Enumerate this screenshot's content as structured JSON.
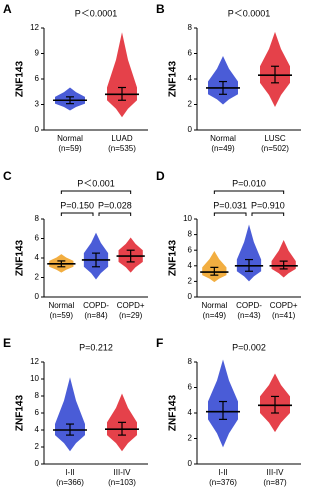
{
  "chart_data": [
    {
      "type": "dot",
      "panel": "A",
      "y_label": "ZNF143",
      "ylim": [
        0,
        12
      ],
      "yticks": [
        0,
        3,
        6,
        9,
        12
      ],
      "annotations": [
        "P＜0.0001"
      ],
      "series": [
        {
          "name": "Normal",
          "n_label": "(n=59)",
          "color": "#2a3fd0",
          "median": 3.5,
          "q1": 3.1,
          "q3": 3.9,
          "min": 2.3,
          "max": 5.0
        },
        {
          "name": "LUAD",
          "n_label": "(n=535)",
          "color": "#e0202a",
          "median": 4.2,
          "q1": 3.5,
          "q3": 5.0,
          "min": 1.5,
          "max": 11.5
        }
      ]
    },
    {
      "type": "dot",
      "panel": "B",
      "y_label": "ZNF143",
      "ylim": [
        0,
        8
      ],
      "yticks": [
        0,
        2,
        4,
        6,
        8
      ],
      "annotations": [
        "P＜0.0001"
      ],
      "series": [
        {
          "name": "Normal",
          "n_label": "(n=49)",
          "color": "#2a3fd0",
          "median": 3.3,
          "q1": 2.8,
          "q3": 3.8,
          "min": 2.0,
          "max": 5.8
        },
        {
          "name": "LUSC",
          "n_label": "(n=502)",
          "color": "#e0202a",
          "median": 4.3,
          "q1": 3.7,
          "q3": 5.0,
          "min": 1.8,
          "max": 7.7
        }
      ]
    },
    {
      "type": "dot",
      "panel": "C",
      "y_label": "ZNF143",
      "ylim": [
        0,
        8
      ],
      "yticks": [
        0,
        2,
        4,
        6,
        8
      ],
      "annotations": [
        "P=0.150",
        "P=0.028",
        "P＜0.001"
      ],
      "series": [
        {
          "name": "Normal",
          "n_label": "(n=59)",
          "color": "#f0a020",
          "median": 3.4,
          "q1": 3.1,
          "q3": 3.7,
          "min": 2.5,
          "max": 4.4
        },
        {
          "name": "COPD-",
          "n_label": "(n=84)",
          "color": "#2a3fd0",
          "median": 3.8,
          "q1": 3.1,
          "q3": 4.5,
          "min": 1.8,
          "max": 6.6
        },
        {
          "name": "COPD+",
          "n_label": "(n=29)",
          "color": "#e0202a",
          "median": 4.2,
          "q1": 3.6,
          "q3": 4.8,
          "min": 2.5,
          "max": 6.1
        }
      ]
    },
    {
      "type": "dot",
      "panel": "D",
      "y_label": "ZNF143",
      "ylim": [
        0,
        10
      ],
      "yticks": [
        0,
        2,
        4,
        6,
        8,
        10
      ],
      "annotations": [
        "P=0.031",
        "P=0.910",
        "P=0.010"
      ],
      "series": [
        {
          "name": "Normal",
          "n_label": "(n=49)",
          "color": "#f0a020",
          "median": 3.2,
          "q1": 2.8,
          "q3": 3.8,
          "min": 1.9,
          "max": 5.9
        },
        {
          "name": "COPD-",
          "n_label": "(n=43)",
          "color": "#2a3fd0",
          "median": 4.0,
          "q1": 3.3,
          "q3": 4.8,
          "min": 2.0,
          "max": 9.3
        },
        {
          "name": "COPD+",
          "n_label": "(n=41)",
          "color": "#e0202a",
          "median": 4.0,
          "q1": 3.6,
          "q3": 4.6,
          "min": 2.5,
          "max": 7.3
        }
      ]
    },
    {
      "type": "dot",
      "panel": "E",
      "y_label": "ZNF143",
      "ylim": [
        0,
        12
      ],
      "yticks": [
        0,
        2,
        4,
        6,
        8,
        10,
        12
      ],
      "annotations": [
        "P=0.212"
      ],
      "series": [
        {
          "name": "I-II",
          "n_label": "(n=366)",
          "color": "#2a3fd0",
          "median": 4.0,
          "q1": 3.4,
          "q3": 4.7,
          "min": 1.5,
          "max": 10.2
        },
        {
          "name": "III-IV",
          "n_label": "(n=103)",
          "color": "#e0202a",
          "median": 4.1,
          "q1": 3.4,
          "q3": 4.9,
          "min": 1.5,
          "max": 8.3
        }
      ]
    },
    {
      "type": "dot",
      "panel": "F",
      "y_label": "ZNF143",
      "ylim": [
        0,
        8
      ],
      "yticks": [
        0,
        2,
        4,
        6,
        8
      ],
      "annotations": [
        "P=0.002"
      ],
      "series": [
        {
          "name": "I-II",
          "n_label": "(n=376)",
          "color": "#2a3fd0",
          "median": 4.1,
          "q1": 3.5,
          "q3": 4.9,
          "min": 1.3,
          "max": 8.2
        },
        {
          "name": "III-IV",
          "n_label": "(n=87)",
          "color": "#e0202a",
          "median": 4.6,
          "q1": 4.0,
          "q3": 5.3,
          "min": 2.5,
          "max": 7.1
        }
      ]
    }
  ]
}
